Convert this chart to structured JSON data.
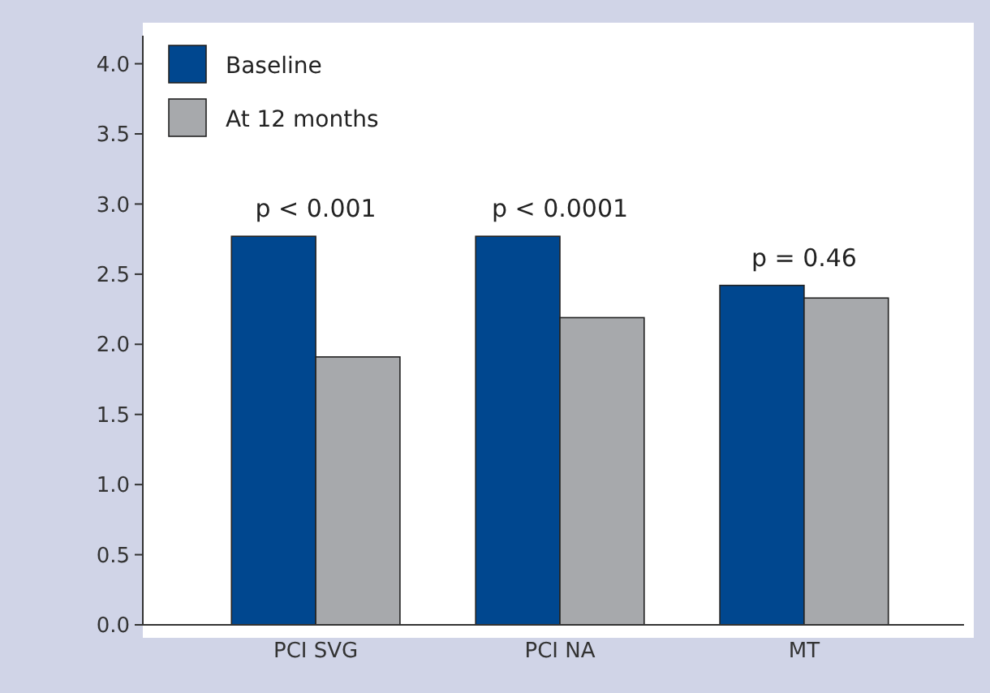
{
  "chart_data": {
    "type": "bar",
    "categories": [
      "PCI SVG",
      "PCI NA",
      "MT"
    ],
    "series": [
      {
        "name": "Baseline",
        "color": "#00478f",
        "values": [
          2.77,
          2.77,
          2.42
        ]
      },
      {
        "name": "At 12 months",
        "color": "#a7a9ac",
        "values": [
          1.91,
          2.19,
          2.33
        ]
      }
    ],
    "ylim": [
      0,
      4.2
    ],
    "yticks": [
      {
        "value": 0,
        "label": "0.0"
      },
      {
        "value": 0.5,
        "label": "0.5"
      },
      {
        "value": 1,
        "label": "1.0"
      },
      {
        "value": 1.5,
        "label": "1.5"
      },
      {
        "value": 2,
        "label": "2.0"
      },
      {
        "value": 2.5,
        "label": "2.5"
      },
      {
        "value": 3,
        "label": "3.0"
      },
      {
        "value": 3.5,
        "label": "3.5"
      },
      {
        "value": 4,
        "label": "4.0"
      }
    ],
    "annotations": [
      "p < 0.001",
      "p < 0.0001",
      "p = 0.46"
    ],
    "legend": "top left",
    "grid": false
  }
}
